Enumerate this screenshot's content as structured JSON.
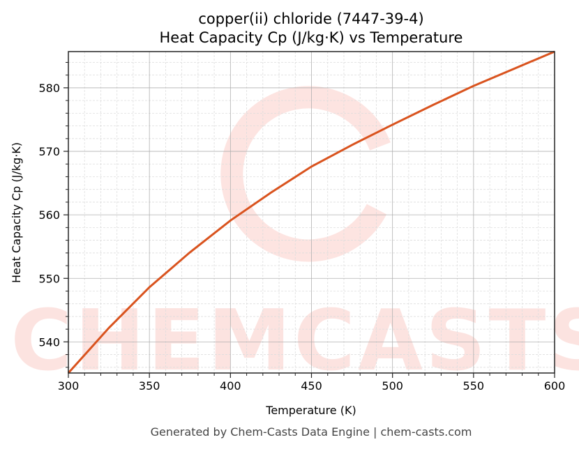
{
  "chart_data": {
    "type": "line",
    "title": "copper(ii) chloride (7447-39-4)",
    "subtitle": "Heat Capacity Cp (J/kg·K) vs Temperature",
    "xlabel": "Temperature (K)",
    "ylabel": "Heat Capacity Cp (J/kg·K)",
    "xlim": [
      300,
      600
    ],
    "ylim": [
      535.1,
      585.7
    ],
    "xticks": [
      300,
      350,
      400,
      450,
      500,
      550,
      600
    ],
    "yticks": [
      540,
      550,
      560,
      570,
      580
    ],
    "grid": true,
    "series": [
      {
        "name": "Cp",
        "color": "#d9531e",
        "x": [
          300,
          325,
          350,
          375,
          400,
          425,
          450,
          475,
          500,
          525,
          550,
          575,
          600
        ],
        "values": [
          535.1,
          542.2,
          548.6,
          554.1,
          559.1,
          563.5,
          567.6,
          571.0,
          574.2,
          577.3,
          580.3,
          583.0,
          585.7
        ]
      }
    ],
    "watermark": "CHEMCASTS",
    "footer": "Generated by Chem-Casts Data Engine | chem-casts.com"
  }
}
